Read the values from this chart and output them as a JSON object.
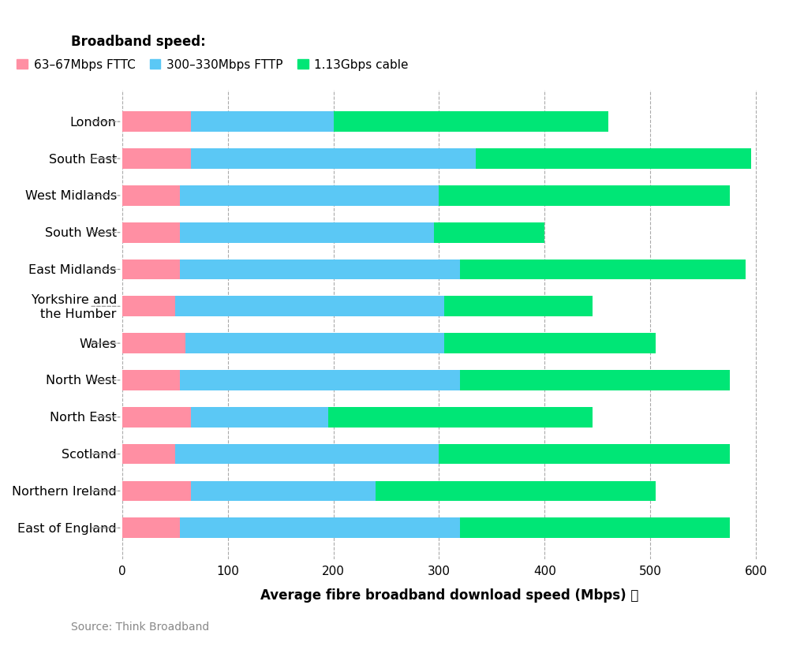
{
  "regions": [
    "London",
    "South East",
    "West Midlands",
    "South West",
    "East Midlands",
    "Yorkshire and\nthe Humber",
    "Wales",
    "North West",
    "North East",
    "Scotland",
    "Northern Ireland",
    "East of England"
  ],
  "fttc": [
    65,
    65,
    55,
    55,
    55,
    50,
    60,
    55,
    65,
    50,
    65,
    55
  ],
  "fttp": [
    135,
    270,
    245,
    240,
    265,
    255,
    245,
    265,
    130,
    250,
    175,
    265
  ],
  "cable": [
    260,
    260,
    275,
    105,
    270,
    140,
    200,
    255,
    250,
    275,
    265,
    255
  ],
  "color_fttc": "#FF8FA3",
  "color_fttp": "#5BC8F5",
  "color_cable": "#00E676",
  "xlabel": "Average fibre broadband download speed (Mbps)",
  "xlabel_suffix": " ⨿",
  "legend_title": "Broadband speed:",
  "legend_labels": [
    "63–67Mbps FTTC",
    "300–330Mbps FTTP",
    "1.13Gbps cable"
  ],
  "source": "Source: Think Broadband",
  "xlim": [
    0,
    620
  ],
  "xticks": [
    0,
    100,
    200,
    300,
    400,
    500,
    600
  ],
  "background_color": "#FFFFFF",
  "bar_height": 0.55
}
